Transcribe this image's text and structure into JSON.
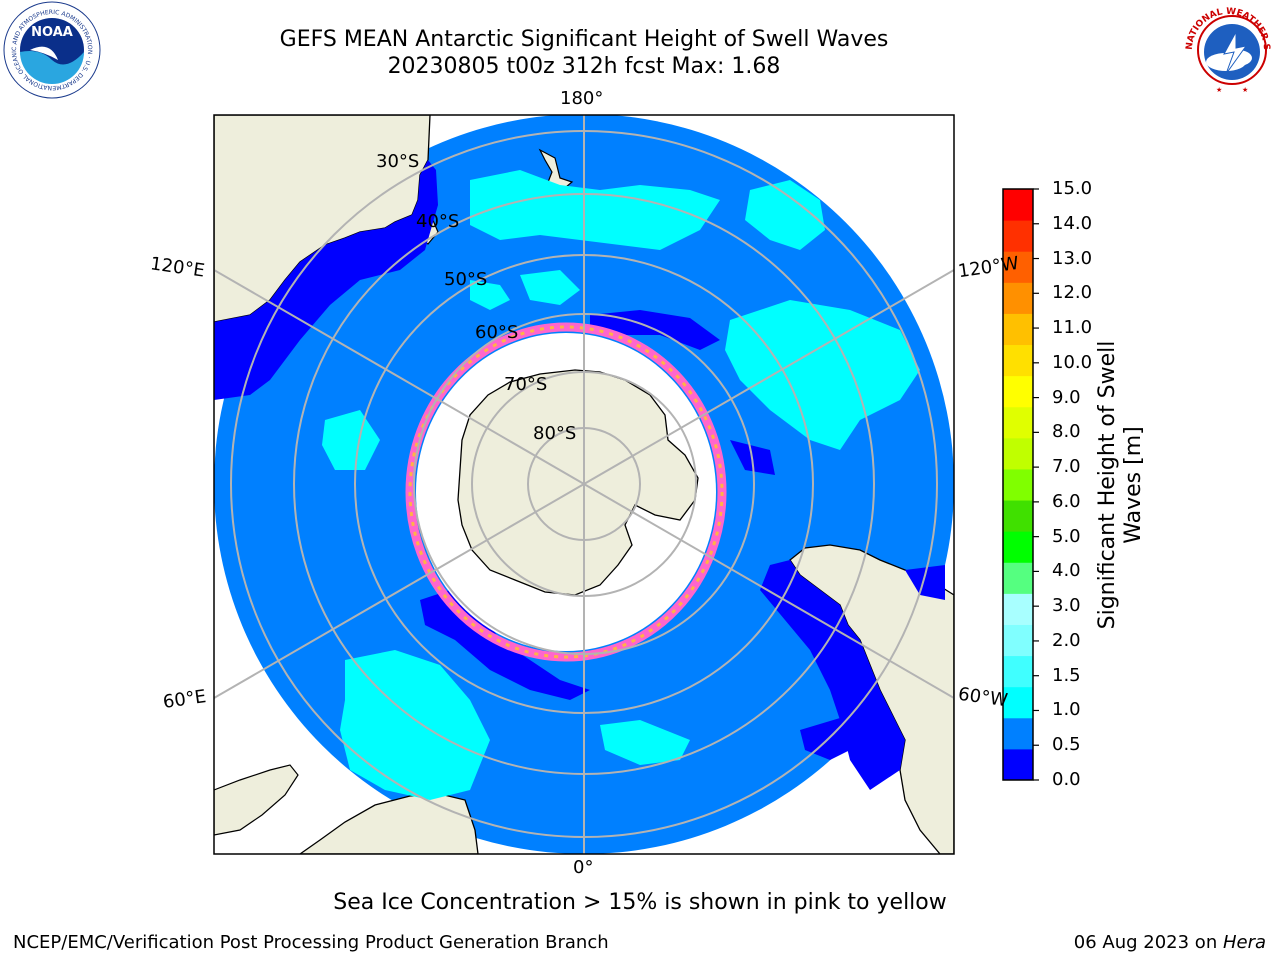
{
  "title": {
    "line1": "GEFS MEAN Antarctic Significant Height of Swell Waves",
    "line2": "20230805 t00z 312h fcst   Max: 1.68"
  },
  "map": {
    "projection": "south-polar-stereographic",
    "longitude_labels": {
      "top": "180°",
      "bottom": "0°",
      "upper_left": "120°E",
      "upper_right": "120°W",
      "lower_left": "60°E",
      "lower_right": "60°W"
    },
    "latitude_labels": [
      "30°S",
      "40°S",
      "50°S",
      "60°S",
      "70°S",
      "80°S"
    ]
  },
  "colorbar": {
    "label": "Significant Height of Swell Waves [m]",
    "ticks": [
      "15.0",
      "14.0",
      "13.0",
      "12.0",
      "11.0",
      "10.0",
      "9.0",
      "8.0",
      "7.0",
      "6.0",
      "5.0",
      "4.0",
      "3.0",
      "2.0",
      "1.5",
      "1.0",
      "0.5",
      "0.0"
    ],
    "colors": [
      "#0000ff",
      "#0080ff",
      "#00ffff",
      "#40ffff",
      "#80ffff",
      "#a8ffff",
      "#55ff80",
      "#00ff00",
      "#40e000",
      "#80ff00",
      "#c0ff00",
      "#e0ff00",
      "#ffff00",
      "#ffe000",
      "#ffc000",
      "#ff9000",
      "#ff6000",
      "#ff3000",
      "#ff0000"
    ]
  },
  "caption": "Sea Ice Concentration > 15% is shown in pink to yellow",
  "footer": {
    "left": "NCEP/EMC/Verification Post Processing Product Generation Branch",
    "right_date": "06 Aug 2023 on ",
    "right_host": "Hera"
  },
  "logos": {
    "noaa": "NOAA",
    "noaa_ring": "NATIONAL OCEANIC AND ATMOSPHERIC ADMINISTRATION · U.S. DEPARTMENT OF COMMERCE",
    "nws_ring": "NATIONAL WEATHER SERVICE"
  },
  "colors": {
    "ocean": "#0080ff",
    "land": "#eeeedc",
    "ice_shelf": "#ffffff",
    "grid": "#b3b3b3"
  }
}
